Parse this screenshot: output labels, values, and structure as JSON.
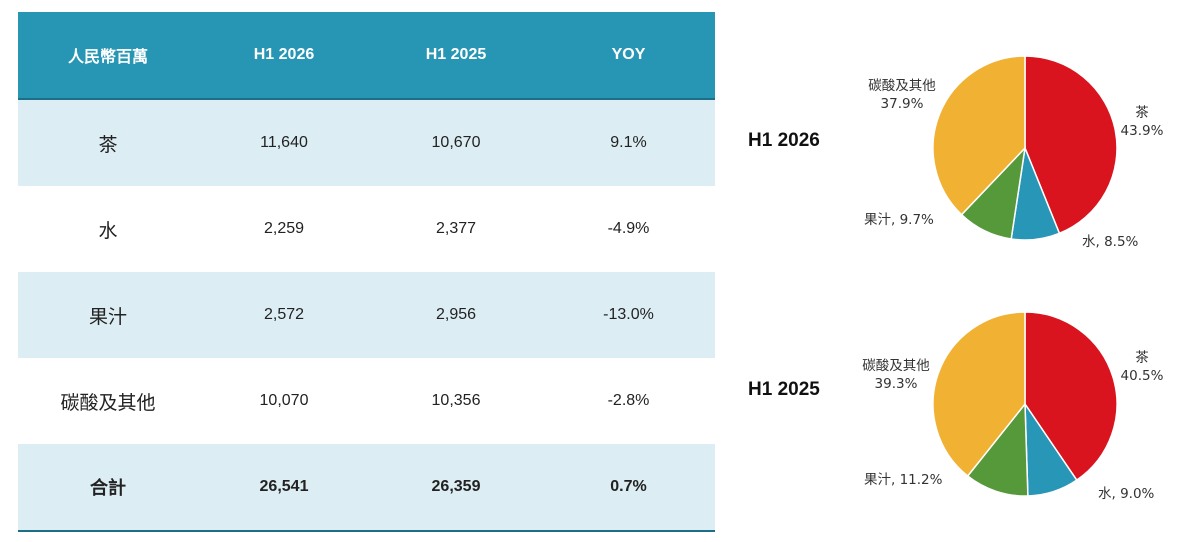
{
  "table": {
    "headers": [
      "人民幣百萬",
      "H1 2026",
      "H1 2025",
      "YOY"
    ],
    "rows": [
      {
        "label": "茶",
        "h1_2026": "11,640",
        "h1_2025": "10,670",
        "yoy": "9.1%"
      },
      {
        "label": "水",
        "h1_2026": "2,259",
        "h1_2025": "2,377",
        "yoy": "-4.9%"
      },
      {
        "label": "果汁",
        "h1_2026": "2,572",
        "h1_2025": "2,956",
        "yoy": "-13.0%"
      },
      {
        "label": "碳酸及其他",
        "h1_2026": "10,070",
        "h1_2025": "10,356",
        "yoy": "-2.8%"
      }
    ],
    "total": {
      "label": "合計",
      "h1_2026": "26,541",
      "h1_2025": "26,359",
      "yoy": "0.7%"
    }
  },
  "colors": {
    "header_bg": "#2796b5",
    "band_bg": "#dcedf4",
    "tea": "#d9141e",
    "water": "#2896b6",
    "juice": "#56993a",
    "carbonated": "#f1b133"
  },
  "chart_data": [
    {
      "type": "pie",
      "title": "H1 2026",
      "slices": [
        {
          "name": "茶",
          "value": 43.9,
          "label": "43.9%",
          "color": "#d9141e"
        },
        {
          "name": "水",
          "value": 8.5,
          "label": "8.5%",
          "color": "#2896b6"
        },
        {
          "name": "果汁",
          "value": 9.7,
          "label": "9.7%",
          "color": "#56993a"
        },
        {
          "name": "碳酸及其他",
          "value": 37.9,
          "label": "37.9%",
          "color": "#f1b133"
        }
      ]
    },
    {
      "type": "pie",
      "title": "H1 2025",
      "slices": [
        {
          "name": "茶",
          "value": 40.5,
          "label": "40.5%",
          "color": "#d9141e"
        },
        {
          "name": "水",
          "value": 9.0,
          "label": "9.0%",
          "color": "#2896b6"
        },
        {
          "name": "果汁",
          "value": 11.2,
          "label": "11.2%",
          "color": "#56993a"
        },
        {
          "name": "碳酸及其他",
          "value": 39.3,
          "label": "39.3%",
          "color": "#f1b133"
        }
      ]
    }
  ]
}
